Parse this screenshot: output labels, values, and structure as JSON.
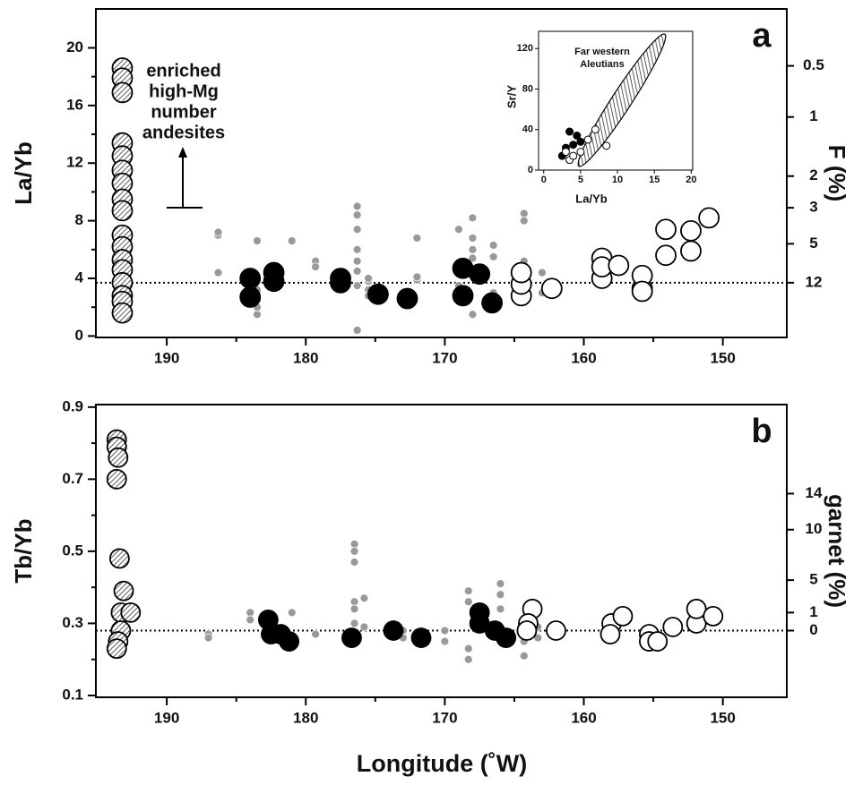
{
  "chart_data": [
    {
      "type": "scatter",
      "panel_label": "a",
      "ylabel": "La/Yb",
      "y2label": "F (%)",
      "xlim": [
        195.1,
        145.4
      ],
      "xticks": [
        190,
        180,
        170,
        160,
        150
      ],
      "xminorticks": [
        185,
        175,
        165,
        155
      ],
      "ylim": [
        -0.1,
        22.7
      ],
      "yticks": [
        0,
        4,
        8,
        12,
        16,
        20
      ],
      "yminorticks": [
        2,
        6,
        10,
        14,
        18
      ],
      "y2ticks": [
        {
          "value": 0.5,
          "label": "0.5",
          "at": 18.75
        },
        {
          "value": 1,
          "label": "1",
          "at": 15.2
        },
        {
          "value": 2,
          "label": "2",
          "at": 11.1
        },
        {
          "value": 3,
          "label": "3",
          "at": 8.9
        },
        {
          "value": 5,
          "label": "5",
          "at": 6.4
        },
        {
          "value": 12,
          "label": "12",
          "at": 3.7
        }
      ],
      "reference_line": 3.7,
      "annotation": [
        "enriched",
        "high-Mg",
        "number",
        "andesites"
      ],
      "series": [
        {
          "style": "gray",
          "color": "#999999",
          "x": [
            193,
            193,
            186.3,
            186.3,
            186.3,
            183.5,
            183.5,
            183.5,
            183.5,
            183.5,
            181,
            179.3,
            179.3,
            176.3,
            176.3,
            176.3,
            176.3,
            176.3,
            176.3,
            176.3,
            176.3,
            175.5,
            175.5,
            175.5,
            175.5,
            172,
            172,
            172,
            169,
            169,
            169,
            168,
            168,
            168,
            168,
            168,
            166.5,
            166.5,
            166.5,
            164.3,
            164.3,
            164.3,
            163,
            163
          ],
          "values": [
            4.8,
            9.8,
            7.0,
            7.2,
            4.4,
            6.6,
            1.5,
            2.0,
            2.5,
            3.2,
            6.6,
            5.2,
            4.8,
            9.0,
            8.4,
            7.4,
            6.0,
            5.2,
            4.5,
            3.5,
            0.4,
            3.8,
            3.2,
            2.8,
            4.0,
            6.8,
            3.9,
            4.1,
            7.4,
            5.0,
            3.5,
            8.2,
            6.8,
            6.0,
            5.4,
            1.5,
            6.3,
            5.5,
            3.0,
            8.5,
            8.0,
            5.2,
            3.0,
            4.4
          ]
        },
        {
          "style": "hatched",
          "color": "#ffffff",
          "x": [
            193.2,
            193.2,
            193.2,
            193.2,
            193.2,
            193.2,
            193.2,
            193.2,
            193.2,
            193.2,
            193.2,
            193.2,
            193.2,
            193.2,
            193.2,
            193.2,
            193.2
          ],
          "values": [
            18.6,
            17.9,
            16.9,
            13.4,
            12.5,
            11.5,
            10.6,
            9.5,
            8.7,
            7.0,
            6.2,
            5.3,
            4.6,
            3.7,
            2.8,
            2.4,
            1.6
          ]
        },
        {
          "style": "black",
          "color": "#000000",
          "x": [
            184.0,
            184.0,
            182.3,
            182.3,
            177.5,
            177.5,
            174.8,
            172.7,
            168.7,
            168.7,
            167.5,
            166.6
          ],
          "values": [
            4.0,
            2.7,
            4.4,
            3.8,
            4.0,
            3.7,
            2.9,
            2.6,
            4.7,
            2.8,
            4.3,
            2.3
          ]
        },
        {
          "style": "white",
          "color": "#ffffff",
          "x": [
            164.5,
            164.5,
            164.5,
            162.3,
            158.7,
            158.7,
            158.7,
            157.5,
            155.8,
            155.8,
            155.8,
            154.1,
            154.1,
            152.3,
            152.3,
            151.0
          ],
          "values": [
            2.8,
            3.6,
            4.4,
            3.3,
            5.4,
            4.0,
            4.8,
            4.9,
            3.3,
            4.2,
            3.1,
            7.4,
            5.6,
            7.3,
            5.9,
            8.2
          ]
        }
      ]
    },
    {
      "type": "scatter",
      "panel_label": "b",
      "ylabel": "Tb/Yb",
      "y2label": "garnet (%)",
      "xlabel": "Longitude (˚W)",
      "xlim": [
        195.1,
        145.4
      ],
      "xticks": [
        190,
        180,
        170,
        160,
        150
      ],
      "xminorticks": [
        185,
        175,
        165,
        155
      ],
      "ylim": [
        0.095,
        0.907
      ],
      "yticks": [
        0.1,
        0.3,
        0.5,
        0.7,
        0.9
      ],
      "yminorticks": [
        0.2,
        0.4,
        0.6,
        0.8
      ],
      "y2ticks": [
        {
          "value": 14,
          "label": "14",
          "at": 0.66
        },
        {
          "value": 10,
          "label": "10",
          "at": 0.56
        },
        {
          "value": 5,
          "label": "5",
          "at": 0.42
        },
        {
          "value": 1,
          "label": "1",
          "at": 0.33
        },
        {
          "value": 0,
          "label": "0",
          "at": 0.28
        }
      ],
      "reference_line": 0.28,
      "series": [
        {
          "style": "gray",
          "color": "#999999",
          "x": [
            187,
            187,
            184,
            184,
            181,
            179.3,
            176.5,
            176.5,
            176.5,
            176.5,
            176.5,
            176.5,
            176.5,
            175.8,
            175.8,
            173,
            173,
            170,
            170,
            168.3,
            168.3,
            168.3,
            168.3,
            166,
            166,
            166,
            164.3,
            164.3,
            163.3,
            163.3
          ],
          "values": [
            0.27,
            0.26,
            0.33,
            0.31,
            0.33,
            0.27,
            0.52,
            0.5,
            0.47,
            0.36,
            0.34,
            0.3,
            0.26,
            0.37,
            0.29,
            0.28,
            0.26,
            0.28,
            0.25,
            0.39,
            0.36,
            0.23,
            0.2,
            0.41,
            0.38,
            0.34,
            0.21,
            0.25,
            0.26,
            0.29
          ]
        },
        {
          "style": "hatched",
          "color": "#ffffff",
          "x": [
            193.6,
            193.6,
            193.5,
            193.6,
            193.4,
            193.1,
            193.3,
            192.6,
            193.3,
            193.5,
            193.6
          ],
          "values": [
            0.81,
            0.79,
            0.76,
            0.7,
            0.48,
            0.39,
            0.33,
            0.33,
            0.28,
            0.25,
            0.23
          ]
        },
        {
          "style": "black",
          "color": "#000000",
          "x": [
            182.7,
            182.5,
            181.8,
            181.2,
            176.7,
            173.7,
            171.7,
            167.5,
            167.5,
            166.4,
            165.6
          ],
          "values": [
            0.31,
            0.27,
            0.27,
            0.25,
            0.26,
            0.28,
            0.26,
            0.33,
            0.3,
            0.28,
            0.26
          ]
        },
        {
          "style": "white",
          "color": "#ffffff",
          "x": [
            163.7,
            164.0,
            164.1,
            162.0,
            158.0,
            158.1,
            157.2,
            155.3,
            155.3,
            154.7,
            153.6,
            151.9,
            151.9,
            150.7
          ],
          "values": [
            0.34,
            0.3,
            0.28,
            0.28,
            0.3,
            0.27,
            0.32,
            0.27,
            0.25,
            0.25,
            0.29,
            0.3,
            0.34,
            0.32
          ]
        }
      ]
    },
    {
      "type": "scatter",
      "inset": true,
      "title": [
        "Far western",
        "Aleutians"
      ],
      "xlabel": "La/Yb",
      "ylabel": "Sr/Y",
      "xlim": [
        -0.7,
        20.2
      ],
      "xticks": [
        0,
        5,
        10,
        15,
        20
      ],
      "ylim": [
        0,
        137
      ],
      "yticks": [
        0,
        40,
        80,
        120
      ],
      "series": [
        {
          "style": "black",
          "color": "#000000",
          "x": [
            2.5,
            3.0,
            3.5,
            4.5,
            5.0,
            4.0
          ],
          "values": [
            14,
            22,
            38,
            34,
            28,
            25
          ]
        },
        {
          "style": "white",
          "color": "#ffffff",
          "x": [
            3.5,
            4.0,
            5.0,
            6.0,
            7.0,
            8.5,
            3.0
          ],
          "values": [
            10,
            14,
            18,
            30,
            40,
            24,
            18
          ]
        }
      ]
    }
  ]
}
